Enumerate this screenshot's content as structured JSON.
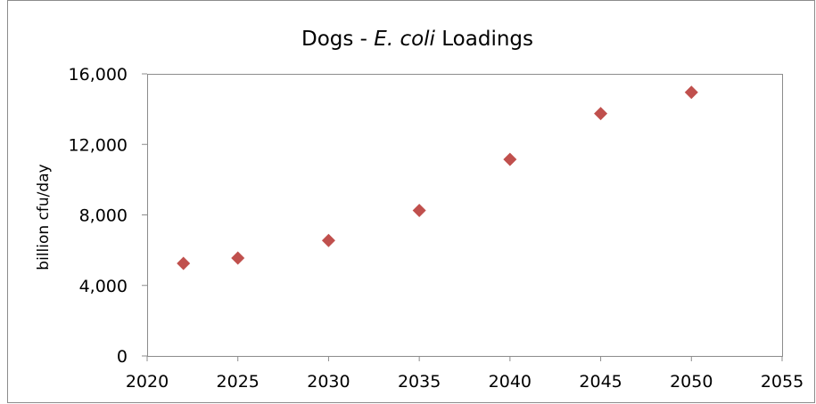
{
  "chart_data": {
    "type": "scatter",
    "title": "Dogs - ",
    "title_italic": "E. coli",
    "title_suffix": " Loadings",
    "xlabel": "",
    "ylabel": "billion cfu/day",
    "xlim": [
      2020,
      2055
    ],
    "ylim": [
      0,
      16000
    ],
    "x_ticks": [
      2020,
      2025,
      2030,
      2035,
      2040,
      2045,
      2050,
      2055
    ],
    "x_tick_labels": [
      "2020",
      "2025",
      "2030",
      "2035",
      "2040",
      "2045",
      "2050",
      "2055"
    ],
    "y_ticks": [
      0,
      4000,
      8000,
      12000,
      16000
    ],
    "y_tick_labels": [
      "0",
      "4,000",
      "8,000",
      "12,000",
      "16,000"
    ],
    "grid": false,
    "legend": "none",
    "marker": "diamond",
    "marker_color": "#c0504d",
    "series": [
      {
        "x": [
          2022,
          2025,
          2030,
          2035,
          2040,
          2045,
          2050
        ],
        "y": [
          5250,
          5550,
          6550,
          8250,
          11150,
          13750,
          14950
        ]
      }
    ]
  }
}
